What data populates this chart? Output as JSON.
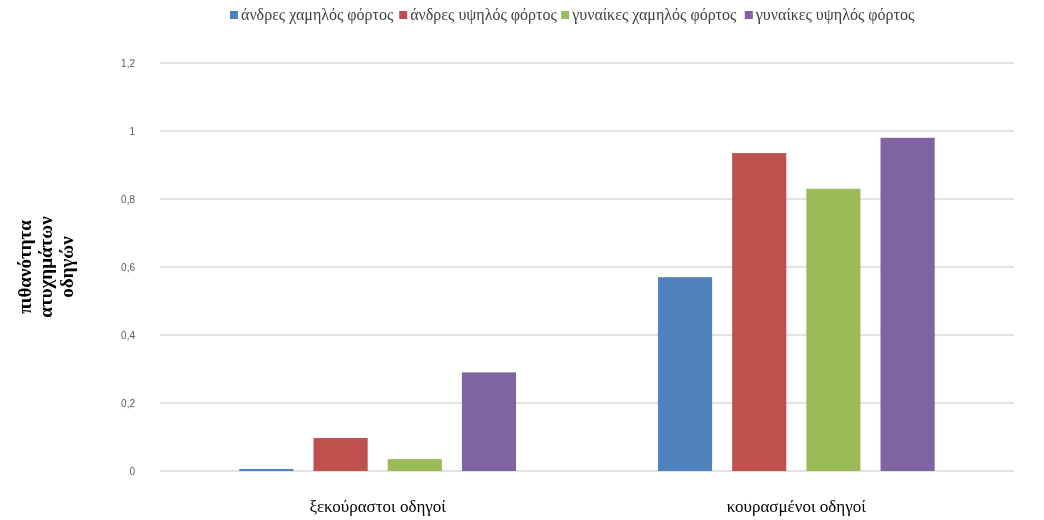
{
  "chart_data": {
    "type": "bar",
    "ylabel": "πιθανότητα ατυχημάτων οδηγών",
    "categories": [
      "ξεκούραστοι οδηγοί",
      "κουρασμένοι οδηγοί"
    ],
    "series": [
      {
        "name": "άνδρες χαμηλός φόρτος",
        "color": "#4f81bd",
        "values": [
          0.006,
          0.57
        ]
      },
      {
        "name": "άνδρες υψηλός φόρτος",
        "color": "#c0504d",
        "values": [
          0.097,
          0.935
        ]
      },
      {
        "name": "γυναίκες χαμηλός φόρτος",
        "color": "#9bbb59",
        "values": [
          0.035,
          0.83
        ]
      },
      {
        "name": "γυναίκες υψηλός φόρτος",
        "color": "#8064a2",
        "values": [
          0.29,
          0.98
        ]
      }
    ],
    "ylim": [
      0,
      1.2
    ],
    "yticks": [
      {
        "value": 0,
        "label": "0"
      },
      {
        "value": 0.2,
        "label": "0,2"
      },
      {
        "value": 0.4,
        "label": "0,4"
      },
      {
        "value": 0.6,
        "label": "0,6"
      },
      {
        "value": 0.8,
        "label": "0,8"
      },
      {
        "value": 1,
        "label": "1"
      },
      {
        "value": 1.2,
        "label": "1,2"
      }
    ],
    "grid": "y",
    "legend": "top"
  }
}
